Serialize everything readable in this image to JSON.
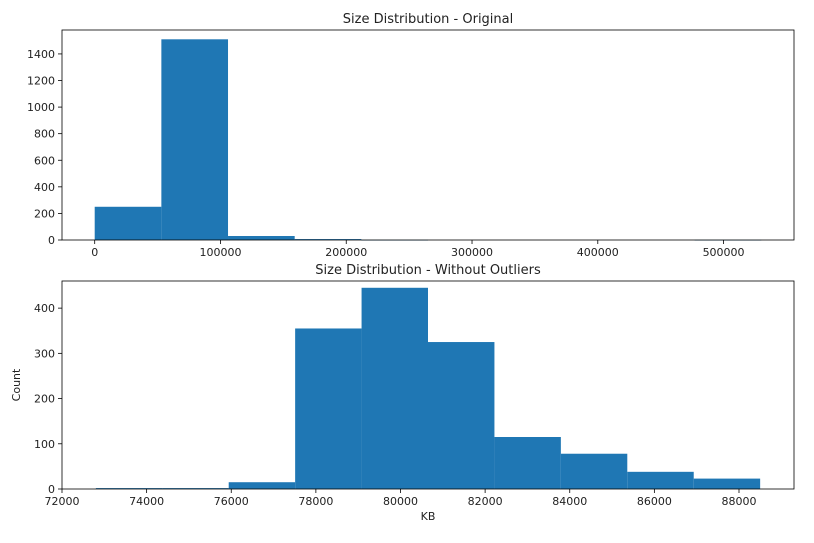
{
  "chart_data": [
    {
      "type": "bar",
      "title": "Size Distribution - Original",
      "xlabel": "",
      "ylabel": "",
      "color": "#1f77b4",
      "xlim": [
        -26000,
        556000
      ],
      "ylim": [
        0,
        1580
      ],
      "xticks": [
        0,
        100000,
        200000,
        300000,
        400000,
        500000
      ],
      "yticks": [
        0,
        200,
        400,
        600,
        800,
        1000,
        1200,
        1400
      ],
      "bins": [
        {
          "x0": 0,
          "x1": 53000,
          "count": 250
        },
        {
          "x0": 53000,
          "x1": 106000,
          "count": 1510
        },
        {
          "x0": 106000,
          "x1": 159000,
          "count": 30
        },
        {
          "x0": 159000,
          "x1": 212000,
          "count": 7
        },
        {
          "x0": 212000,
          "x1": 265000,
          "count": 1
        },
        {
          "x0": 265000,
          "x1": 318000,
          "count": 0
        },
        {
          "x0": 318000,
          "x1": 371000,
          "count": 0
        },
        {
          "x0": 371000,
          "x1": 424000,
          "count": 0
        },
        {
          "x0": 424000,
          "x1": 477000,
          "count": 0
        },
        {
          "x0": 477000,
          "x1": 530000,
          "count": 1
        }
      ]
    },
    {
      "type": "bar",
      "title": "Size Distribution - Without Outliers",
      "xlabel": "KB",
      "ylabel": "Count",
      "color": "#1f77b4",
      "xlim": [
        72000,
        89300
      ],
      "ylim": [
        0,
        460
      ],
      "xticks": [
        72000,
        74000,
        76000,
        78000,
        80000,
        82000,
        84000,
        86000,
        88000
      ],
      "yticks": [
        0,
        100,
        200,
        300,
        400
      ],
      "bins": [
        {
          "x0": 72800,
          "x1": 74370,
          "count": 2
        },
        {
          "x0": 74370,
          "x1": 75940,
          "count": 2
        },
        {
          "x0": 75940,
          "x1": 77510,
          "count": 15
        },
        {
          "x0": 77510,
          "x1": 79080,
          "count": 355
        },
        {
          "x0": 79080,
          "x1": 80650,
          "count": 445
        },
        {
          "x0": 80650,
          "x1": 82220,
          "count": 325
        },
        {
          "x0": 82220,
          "x1": 83790,
          "count": 115
        },
        {
          "x0": 83790,
          "x1": 85360,
          "count": 78
        },
        {
          "x0": 85360,
          "x1": 86930,
          "count": 38
        },
        {
          "x0": 86930,
          "x1": 88500,
          "count": 23
        }
      ]
    }
  ]
}
